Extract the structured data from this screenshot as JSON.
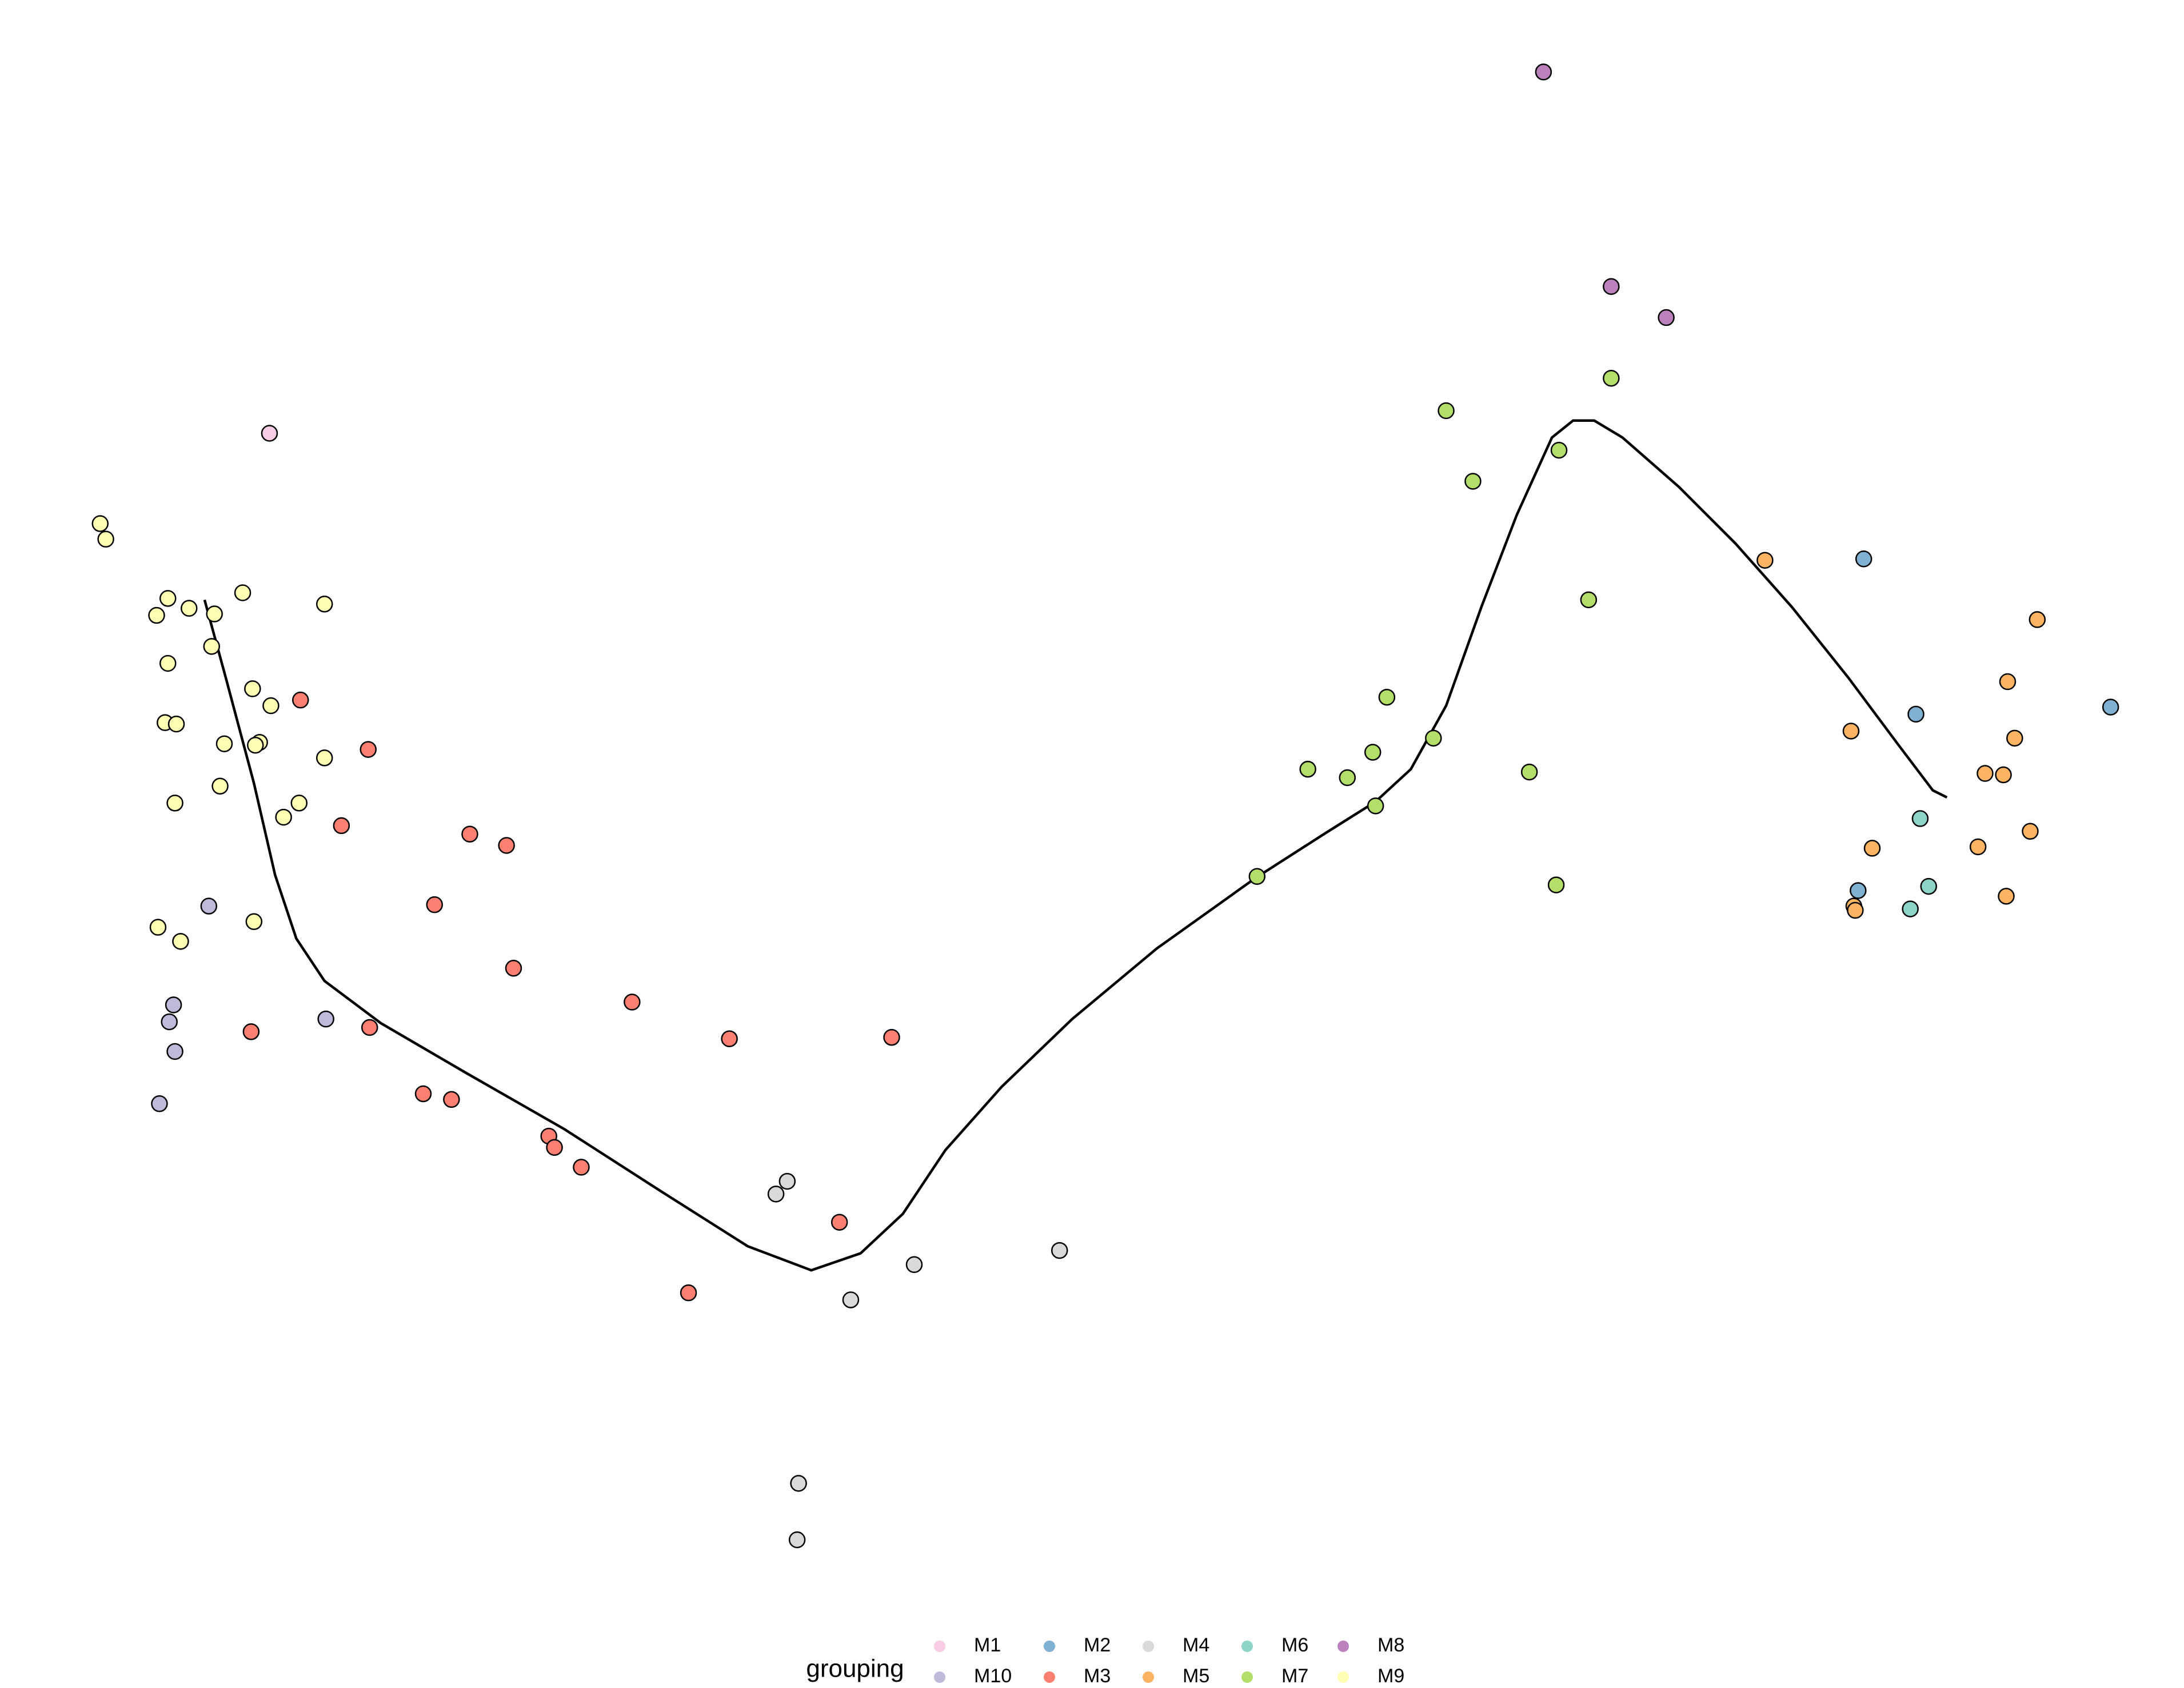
{
  "chart_data": {
    "type": "scatter",
    "xlim": [
      0,
      1548
    ],
    "ylim": [
      1196,
      0
    ],
    "legend_title": "grouping",
    "legend": "bottom",
    "series": [
      {
        "name": "M1",
        "color": "#f8cce4",
        "x": [
          191
        ],
        "y": [
          307
        ]
      },
      {
        "name": "M10",
        "color": "#bebada",
        "x": [
          148,
          123,
          120,
          231,
          124,
          113
        ],
        "y": [
          642,
          712,
          724,
          722,
          745,
          782
        ]
      },
      {
        "name": "M2",
        "color": "#80b1d3",
        "x": [
          1321,
          1358,
          1496,
          1317
        ],
        "y": [
          396,
          506,
          501,
          631
        ]
      },
      {
        "name": "M3",
        "color": "#fb8072",
        "x": [
          213,
          261,
          242,
          333,
          359,
          308,
          364,
          448,
          517,
          632,
          178,
          262,
          300,
          320,
          389,
          393,
          412,
          595,
          488
        ],
        "y": [
          496,
          531,
          585,
          591,
          599,
          641,
          686,
          710,
          736,
          735,
          731,
          728,
          775,
          779,
          805,
          813,
          827,
          866,
          916
        ]
      },
      {
        "name": "M4",
        "color": "#d9d9d9",
        "x": [
          558,
          550,
          648,
          603,
          751,
          566,
          565
        ],
        "y": [
          837,
          846,
          896,
          921,
          886,
          1051,
          1091
        ]
      },
      {
        "name": "M5",
        "color": "#fdb462",
        "x": [
          1251,
          1444,
          1423,
          1312,
          1428,
          1407,
          1420,
          1439,
          1327,
          1402,
          1422,
          1314,
          1315
        ],
        "y": [
          397,
          439,
          483,
          518,
          523,
          548,
          549,
          589,
          601,
          600,
          635,
          642,
          645
        ]
      },
      {
        "name": "M6",
        "color": "#8dd3c7",
        "x": [
          1361,
          1367,
          1354
        ],
        "y": [
          580,
          628,
          644
        ]
      },
      {
        "name": "M7",
        "color": "#b3de69",
        "x": [
          1142,
          1025,
          1105,
          1044,
          1126,
          983,
          973,
          1016,
          927,
          955,
          1084,
          975,
          891,
          1103
        ],
        "y": [
          268,
          291,
          319,
          341,
          425,
          494,
          533,
          523,
          545,
          551,
          547,
          571,
          621,
          627
        ]
      },
      {
        "name": "M8",
        "color": "#bc80bd",
        "x": [
          1094,
          1142,
          1181
        ],
        "y": [
          51,
          203,
          225
        ]
      },
      {
        "name": "M9",
        "color": "#ffffb3",
        "x": [
          71,
          75,
          119,
          111,
          134,
          152,
          172,
          230,
          150,
          119,
          179,
          192,
          117,
          125,
          159,
          184,
          181,
          230,
          156,
          124,
          212,
          201,
          112,
          180,
          128
        ],
        "y": [
          371,
          382,
          424,
          436,
          431,
          435,
          420,
          428,
          458,
          470,
          488,
          500,
          512,
          513,
          527,
          526,
          528,
          537,
          557,
          569,
          569,
          579,
          657,
          653,
          667
        ]
      }
    ],
    "trajectory": {
      "color": "#000000",
      "x": [
        145,
        160,
        180,
        195,
        210,
        230,
        270,
        330,
        400,
        470,
        530,
        575,
        610,
        640,
        670,
        710,
        760,
        820,
        890,
        940,
        975,
        1000,
        1025,
        1050,
        1075,
        1100,
        1115,
        1130,
        1150,
        1190,
        1230,
        1270,
        1310,
        1345,
        1370,
        1380
      ],
      "y": [
        425,
        480,
        555,
        620,
        665,
        695,
        725,
        760,
        800,
        845,
        883,
        900,
        888,
        860,
        815,
        770,
        722,
        672,
        622,
        590,
        568,
        545,
        500,
        430,
        365,
        310,
        298,
        298,
        310,
        345,
        385,
        430,
        480,
        527,
        560,
        565
      ]
    }
  }
}
